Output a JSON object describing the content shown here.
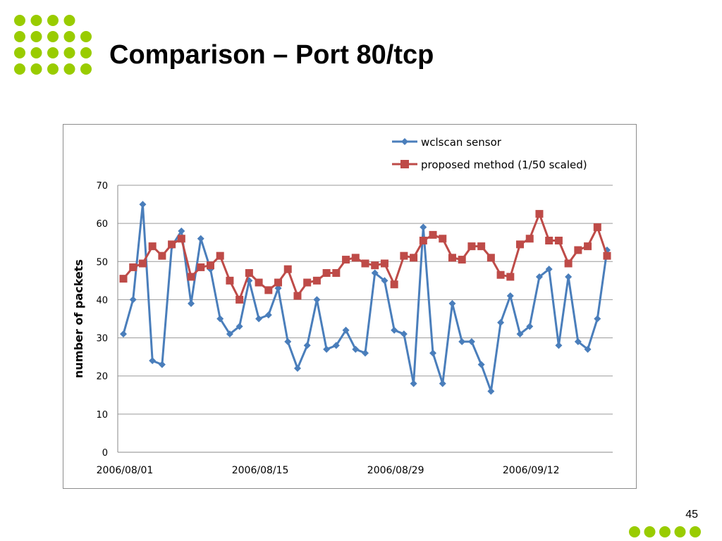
{
  "slide": {
    "title": "Comparison – Port 80/tcp",
    "page_number": "45"
  },
  "colors": {
    "accent_dots": "#99cc00",
    "series_1": "#4a7ebb",
    "series_2": "#be4b48",
    "grid": "#9a9a9a"
  },
  "chart_data": {
    "type": "line",
    "title": "",
    "xlabel": "",
    "ylabel": "number of packets",
    "ylim": [
      0,
      70
    ],
    "y_ticks": [
      0,
      10,
      20,
      30,
      40,
      50,
      60,
      70
    ],
    "x_tick_labels": [
      {
        "index": 0,
        "label": "2006/08/01"
      },
      {
        "index": 14,
        "label": "2006/08/15"
      },
      {
        "index": 28,
        "label": "2006/08/29"
      },
      {
        "index": 42,
        "label": "2006/09/12"
      }
    ],
    "grid": true,
    "legend_position": "top-right",
    "x_start_date": "2006/08/01",
    "series": [
      {
        "name": "wclscan sensor",
        "marker": "diamond",
        "values": [
          31,
          40,
          65,
          24,
          23,
          54,
          58,
          39,
          56,
          48,
          35,
          31,
          33,
          45,
          35,
          36,
          43,
          29,
          22,
          28,
          40,
          27,
          28,
          32,
          27,
          26,
          47,
          45,
          32,
          31,
          18,
          59,
          26,
          18,
          39,
          29,
          29,
          23,
          16,
          34,
          41,
          31,
          33,
          46,
          48,
          28,
          46,
          29,
          27,
          35,
          53
        ]
      },
      {
        "name": "proposed method (1/50 scaled)",
        "marker": "square",
        "values": [
          45.5,
          48.5,
          49.5,
          54,
          51.5,
          54.5,
          56,
          46,
          48.5,
          49,
          51.5,
          45,
          40,
          47,
          44.5,
          42.5,
          44.5,
          48,
          41,
          44.5,
          45,
          47,
          47,
          50.5,
          51,
          49.5,
          49,
          49.5,
          44,
          51.5,
          51,
          55.5,
          57,
          56,
          51,
          50.5,
          54,
          54,
          51,
          46.5,
          46,
          54.5,
          56,
          62.5,
          55.5,
          55.5,
          49.5,
          53,
          54,
          59,
          51.5
        ]
      }
    ]
  }
}
